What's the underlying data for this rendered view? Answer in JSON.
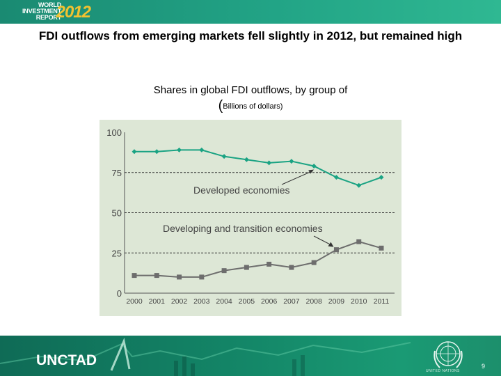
{
  "header": {
    "logo_line1": "WORLD",
    "logo_line2": "INVESTMENT",
    "logo_line3": "REPORT",
    "logo_year": "2012"
  },
  "slide_title": "FDI outflows from emerging markets fell slightly in 2012, but remained high",
  "chart_title": "Shares in global FDI outflows, by group of",
  "chart_subtitle_paren": "(",
  "chart_subtitle_text": "Billions of dollars)",
  "colors": {
    "developed": "#1aa383",
    "developing": "#6d6d6d",
    "chart_bg": "#dde7d6",
    "banner": "#22a486"
  },
  "chart_data": {
    "type": "line",
    "x": [
      "2000",
      "2001",
      "2002",
      "2003",
      "2004",
      "2005",
      "2006",
      "2007",
      "2008",
      "2009",
      "2010",
      "2011"
    ],
    "ylim": [
      0,
      100
    ],
    "yticks": [
      0,
      25,
      50,
      75,
      100
    ],
    "dashed_gridlines": [
      25,
      50,
      75
    ],
    "series": [
      {
        "name": "Developed economies",
        "values": [
          88,
          88,
          89,
          89,
          85,
          83,
          81,
          82,
          79,
          72,
          67,
          72
        ],
        "color": "#1aa383",
        "marker": "diamond"
      },
      {
        "name": "Developing and transition economies",
        "values": [
          11,
          11,
          10,
          10,
          14,
          16,
          18,
          16,
          19,
          27,
          32,
          28
        ],
        "color": "#6d6d6d",
        "marker": "square"
      }
    ],
    "annotations": [
      {
        "text": "Developed economies",
        "points_to": "2008"
      },
      {
        "text": "Developing and transition economies",
        "points_to": "2009"
      }
    ]
  },
  "footer": {
    "logo": "UNCTAD",
    "un_text": "UNITED NATIONS",
    "page_number": "9"
  }
}
